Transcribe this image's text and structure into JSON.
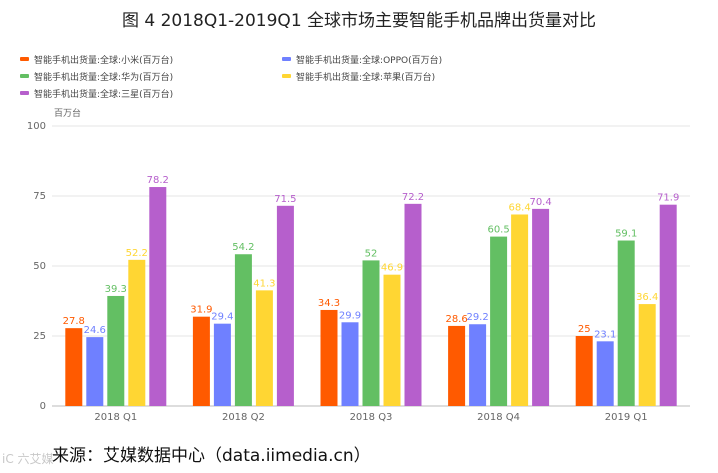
{
  "title": "图 4   2018Q1-2019Q1 全球市场主要智能手机品牌出货量对比",
  "source": "来源：艾媒数据中心（data.iimedia.cn）",
  "watermark": "iC 六艾媒",
  "chart_data": {
    "type": "bar",
    "categories": [
      "2018 Q1",
      "2018 Q2",
      "2018 Q3",
      "2018 Q4",
      "2019 Q1"
    ],
    "ylabel": "百万台",
    "ylim": [
      0,
      100
    ],
    "yticks": [
      0,
      25,
      50,
      75,
      100
    ],
    "grid": true,
    "legend_position": "top-left",
    "series": [
      {
        "name": "智能手机出货量:全球:小米(百万台)",
        "color": "#ff5a00",
        "values": [
          27.8,
          31.9,
          34.3,
          28.6,
          25
        ]
      },
      {
        "name": "智能手机出货量:全球:OPPO(百万台)",
        "color": "#6f80ff",
        "values": [
          24.6,
          29.4,
          29.9,
          29.2,
          23.1
        ]
      },
      {
        "name": "智能手机出货量:全球:华为(百万台)",
        "color": "#63bf63",
        "values": [
          39.3,
          54.2,
          52,
          60.5,
          59.1
        ]
      },
      {
        "name": "智能手机出货量:全球:苹果(百万台)",
        "color": "#ffd633",
        "values": [
          52.2,
          41.3,
          46.9,
          68.4,
          36.4
        ]
      },
      {
        "name": "智能手机出货量:全球:三星(百万台)",
        "color": "#b65fcc",
        "values": [
          78.2,
          71.5,
          72.2,
          70.4,
          71.9
        ]
      }
    ]
  }
}
